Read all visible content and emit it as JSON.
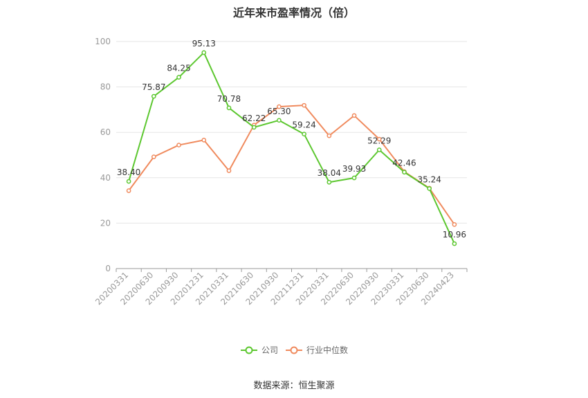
{
  "chart_data": {
    "type": "line",
    "title": "近年来市盈率情况（倍）",
    "xlabel": "",
    "ylabel": "",
    "ylim": [
      0,
      100
    ],
    "yticks": [
      0,
      20,
      40,
      60,
      80,
      100
    ],
    "grid": true,
    "legend_placement": "bottom",
    "categories": [
      "20200331",
      "20200630",
      "20200930",
      "20201231",
      "20210331",
      "20210630",
      "20210930",
      "20211231",
      "20220331",
      "20220630",
      "20220930",
      "20230331",
      "20230630",
      "20240423"
    ],
    "series": [
      {
        "name": "公司",
        "color": "#5cc72f",
        "values": [
          38.4,
          75.87,
          84.25,
          95.13,
          70.78,
          62.22,
          65.3,
          59.24,
          38.04,
          39.93,
          52.29,
          42.46,
          35.24,
          10.96
        ],
        "labels": [
          "38.40",
          "75.87",
          "84.25",
          "95.13",
          "70.78",
          "62.22",
          "65.30",
          "59.24",
          "38.04",
          "39.93",
          "52.29",
          "42.46",
          "35.24",
          "10.96"
        ]
      },
      {
        "name": "行业中位数",
        "color": "#f08a5d",
        "values": [
          34.3,
          49.2,
          54.4,
          56.6,
          43.1,
          63.2,
          71.3,
          71.9,
          58.5,
          67.4,
          57.0,
          42.7,
          35.4,
          19.4
        ]
      }
    ]
  },
  "footer": {
    "source": "数据来源：恒生聚源"
  }
}
